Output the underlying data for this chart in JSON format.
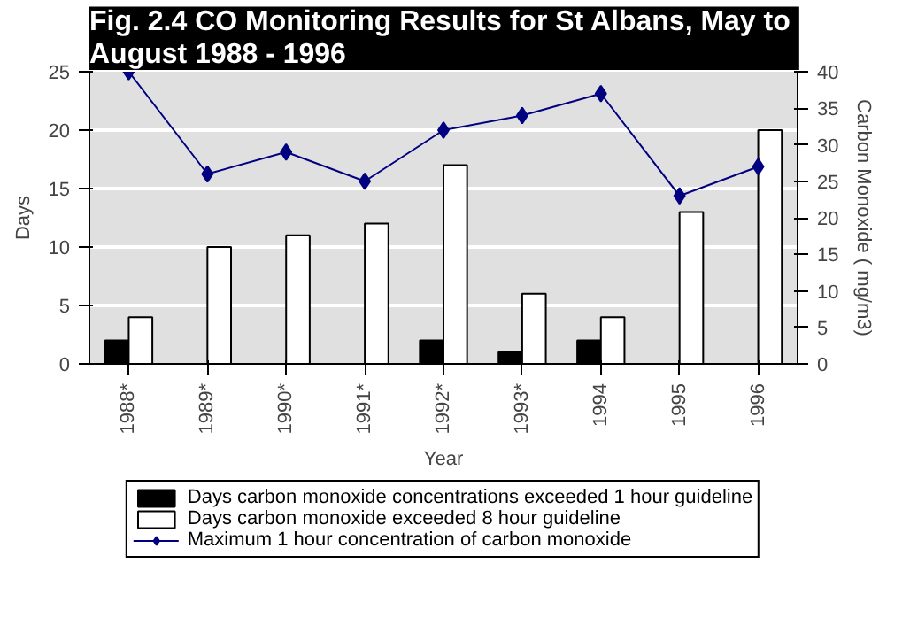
{
  "chart_data": {
    "type": "bar",
    "title": "Fig. 2.4  CO Monitoring Results for St Albans, May to August 1988 - 1996",
    "xlabel": "Year",
    "ylabel": "Days",
    "y2label": "Carbon Monoxide ( mg/m3)",
    "categories": [
      "1988*",
      "1989*",
      "1990*",
      "1991*",
      "1992*",
      "1993*",
      "1994",
      "1995",
      "1996"
    ],
    "series": [
      {
        "name": "Days carbon monoxide concentrations exceeded 1 hour guideline",
        "color": "#000000",
        "values": [
          2,
          0,
          0,
          0,
          2,
          1,
          2,
          0,
          0
        ]
      },
      {
        "name": "Days carbon monoxide exceeded 8 hour guideline",
        "color": "#ffffff",
        "values": [
          4,
          10,
          11,
          12,
          17,
          6,
          4,
          13,
          20
        ]
      },
      {
        "name": "Maximum 1 hour concentration of carbon monoxide",
        "type": "line",
        "axis": "y2",
        "color": "#000080",
        "marker": "diamond",
        "values": [
          40,
          26,
          29,
          25,
          32,
          34,
          37,
          23,
          27
        ]
      }
    ],
    "ylim": [
      0,
      25
    ],
    "yticks": [
      0,
      5,
      10,
      15,
      20,
      25
    ],
    "y2lim": [
      0,
      40
    ],
    "y2ticks": [
      0,
      5,
      10,
      15,
      20,
      25,
      30,
      35,
      40
    ],
    "grid": "y",
    "legend": "bottom"
  }
}
